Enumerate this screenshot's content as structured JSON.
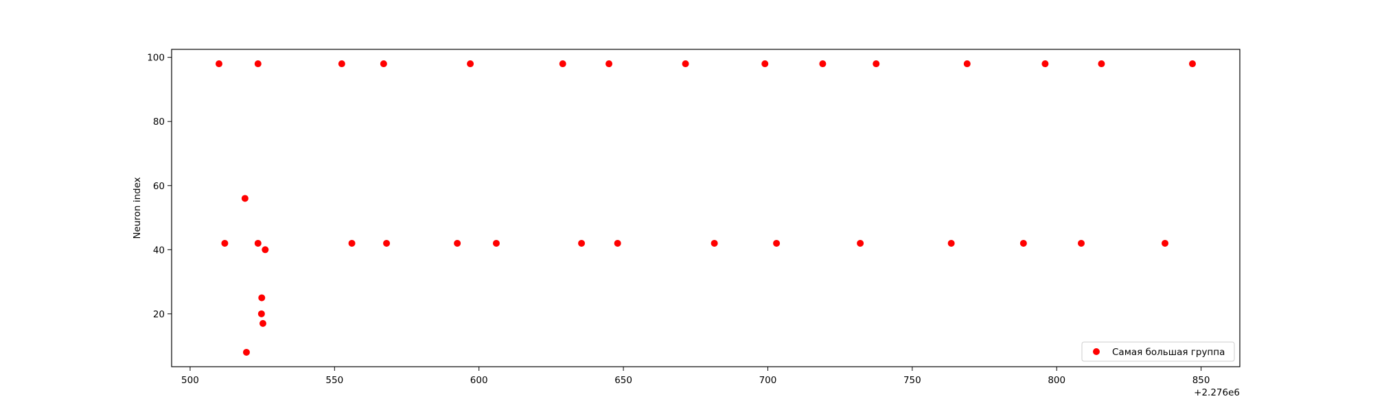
{
  "chart_data": {
    "type": "scatter",
    "title": "",
    "xlabel": "",
    "ylabel": "Neuron index",
    "x_offset_label": "+2.276e6",
    "xlim": [
      493.6,
      863.4
    ],
    "ylim": [
      3.5,
      102.5
    ],
    "x_ticks": [
      500,
      550,
      600,
      650,
      700,
      750,
      800,
      850
    ],
    "y_ticks": [
      20,
      40,
      60,
      80,
      100
    ],
    "grid": false,
    "legend_position": "lower-right",
    "series": [
      {
        "name": "Самая большая группа",
        "color": "#ff0000",
        "points": [
          [
            510,
            98
          ],
          [
            523.5,
            98
          ],
          [
            552.5,
            98
          ],
          [
            567,
            98
          ],
          [
            597,
            98
          ],
          [
            629,
            98
          ],
          [
            645,
            98
          ],
          [
            671.5,
            98
          ],
          [
            699,
            98
          ],
          [
            719,
            98
          ],
          [
            737.5,
            98
          ],
          [
            769,
            98
          ],
          [
            796,
            98
          ],
          [
            815.5,
            98
          ],
          [
            847,
            98
          ],
          [
            512,
            42
          ],
          [
            523.5,
            42
          ],
          [
            556,
            42
          ],
          [
            568,
            42
          ],
          [
            592.5,
            42
          ],
          [
            606,
            42
          ],
          [
            635.5,
            42
          ],
          [
            648,
            42
          ],
          [
            681.5,
            42
          ],
          [
            703,
            42
          ],
          [
            732,
            42
          ],
          [
            763.5,
            42
          ],
          [
            788.5,
            42
          ],
          [
            808.5,
            42
          ],
          [
            837.5,
            42
          ],
          [
            519,
            56
          ],
          [
            526,
            40
          ],
          [
            524.8,
            25
          ],
          [
            524.7,
            20
          ],
          [
            525.2,
            17
          ],
          [
            519.5,
            8
          ]
        ]
      }
    ]
  }
}
